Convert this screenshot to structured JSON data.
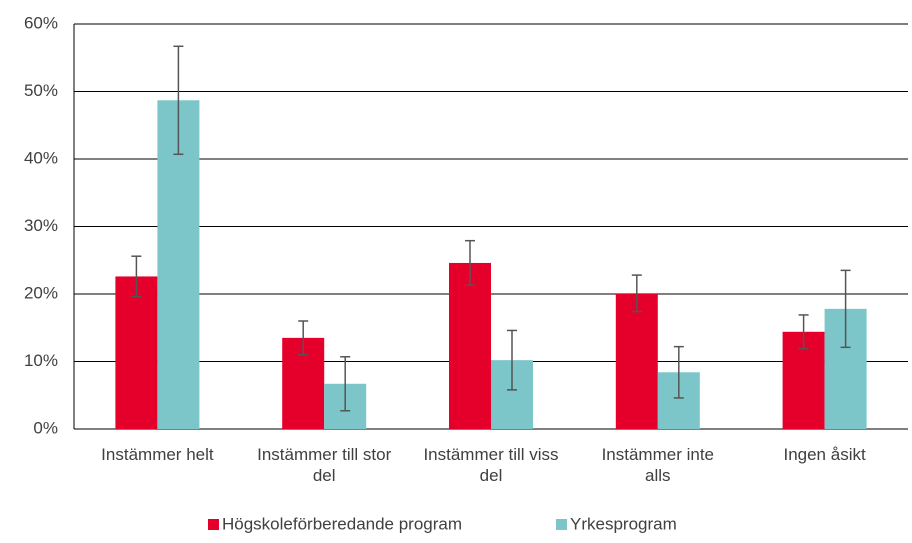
{
  "chart_data": {
    "type": "bar",
    "categories": [
      "Instämmer helt",
      "Instämmer till stor del",
      "Instämmer till viss del",
      "Instämmer inte alls",
      "Ingen åsikt"
    ],
    "series": [
      {
        "name": "Högskoleförberedande program",
        "color": "#e4002b",
        "values": [
          22.6,
          13.5,
          24.6,
          20.1,
          14.4
        ],
        "errors": [
          3.0,
          2.5,
          3.3,
          2.7,
          2.5
        ]
      },
      {
        "name": "Yrkesprogram",
        "color": "#7cc6c9",
        "values": [
          48.7,
          6.7,
          10.2,
          8.4,
          17.8
        ],
        "errors": [
          8.0,
          4.0,
          4.4,
          3.8,
          5.7
        ]
      }
    ],
    "ylim": [
      0,
      60
    ],
    "yticks": [
      {
        "value": 0,
        "label": "0%"
      },
      {
        "value": 10,
        "label": "10%"
      },
      {
        "value": 20,
        "label": "20%"
      },
      {
        "value": 30,
        "label": "30%"
      },
      {
        "value": 40,
        "label": "40%"
      },
      {
        "value": 50,
        "label": "50%"
      },
      {
        "value": 60,
        "label": "60%"
      }
    ],
    "grid": true,
    "legend": "bottom"
  }
}
